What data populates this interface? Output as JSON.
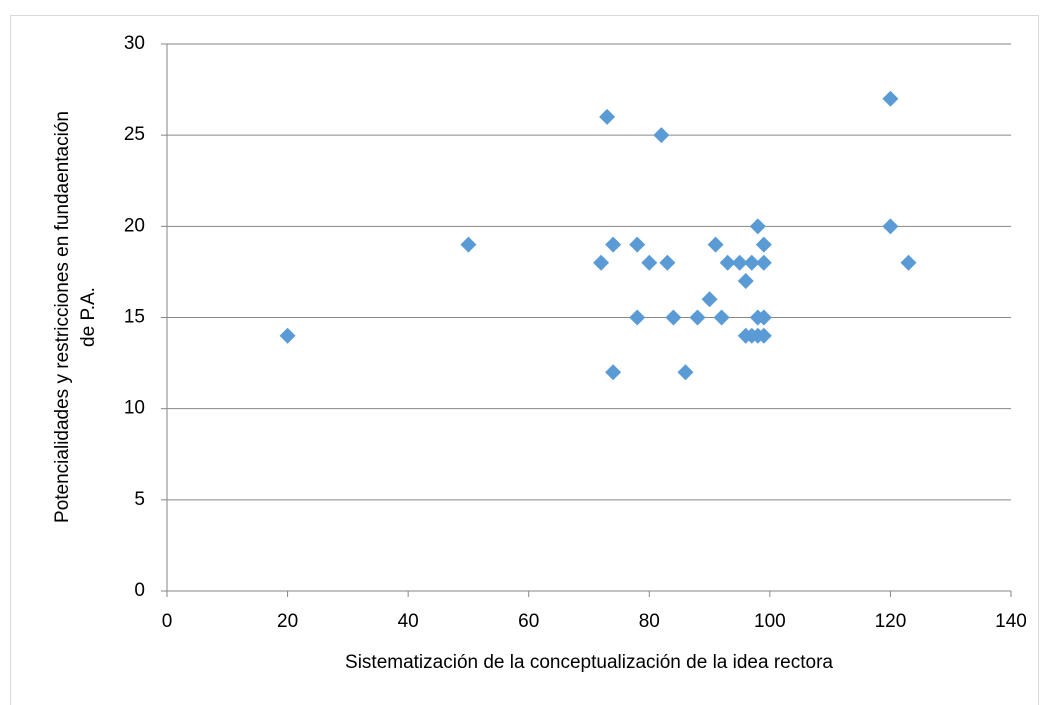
{
  "chart_data": {
    "type": "scatter",
    "xlabel": "Sistematización de la conceptualización de la idea rectora",
    "ylabel": [
      "Potencialidades y restricciones en fundaentación",
      "de P.A."
    ],
    "x": [
      20,
      50,
      72,
      73,
      74,
      74,
      78,
      78,
      80,
      82,
      83,
      84,
      86,
      88,
      90,
      91,
      92,
      93,
      95,
      96,
      96,
      97,
      97,
      98,
      98,
      98,
      99,
      99,
      99,
      99,
      120,
      120,
      123
    ],
    "values": [
      14,
      19,
      18,
      26,
      19,
      12,
      19,
      15,
      18,
      25,
      18,
      15,
      12,
      15,
      16,
      19,
      15,
      18,
      18,
      17,
      14,
      18,
      14,
      20,
      15,
      14,
      19,
      18,
      15,
      14,
      27,
      20,
      18
    ],
    "color": "#5b9bd5",
    "xlim": [
      0,
      140
    ],
    "xticks": [
      0,
      20,
      40,
      60,
      80,
      100,
      120,
      140
    ],
    "ylim": [
      0,
      30
    ],
    "yticks": [
      0,
      5,
      10,
      15,
      20,
      25,
      30
    ],
    "grid": true
  }
}
